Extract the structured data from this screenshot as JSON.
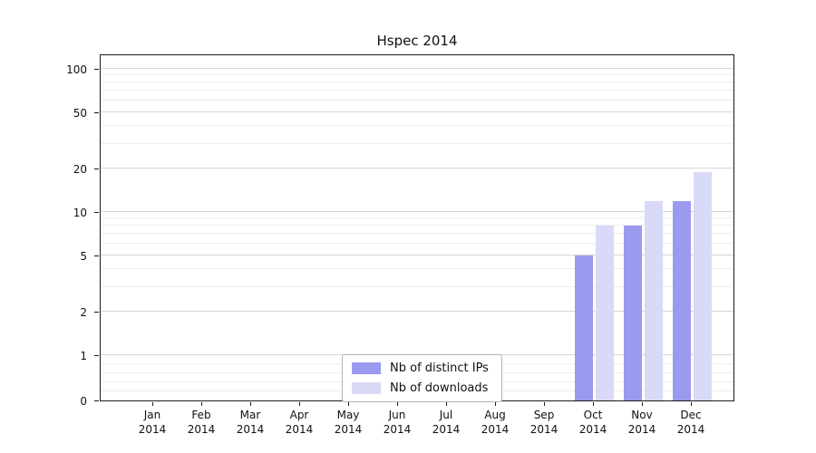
{
  "chart_data": {
    "type": "bar",
    "title": "Hspec 2014",
    "categories": [
      [
        "Jan",
        "2014"
      ],
      [
        "Feb",
        "2014"
      ],
      [
        "Mar",
        "2014"
      ],
      [
        "Apr",
        "2014"
      ],
      [
        "May",
        "2014"
      ],
      [
        "Jun",
        "2014"
      ],
      [
        "Jul",
        "2014"
      ],
      [
        "Aug",
        "2014"
      ],
      [
        "Sep",
        "2014"
      ],
      [
        "Oct",
        "2014"
      ],
      [
        "Nov",
        "2014"
      ],
      [
        "Dec",
        "2014"
      ]
    ],
    "series": [
      {
        "name": "Nb of distinct IPs",
        "color": "#9a9aee",
        "values": [
          0,
          0,
          0,
          0,
          0,
          0,
          0,
          0,
          0,
          5,
          8,
          12
        ]
      },
      {
        "name": "Nb of downloads",
        "color": "#d9d9f8",
        "values": [
          0,
          0,
          0,
          0,
          0,
          0,
          0,
          0,
          0,
          8,
          12,
          19
        ]
      }
    ],
    "yticks": [
      0,
      1,
      2,
      5,
      10,
      20,
      50,
      100
    ],
    "yscale": "symlog",
    "ylim": [
      0,
      130
    ],
    "grid": true,
    "legend_position": "bottom-center-inside",
    "colors": {
      "grid_minor": "#ededed",
      "grid_major": "#d6d6d6",
      "axis": "#1a1a1a",
      "background": "#ffffff"
    }
  }
}
